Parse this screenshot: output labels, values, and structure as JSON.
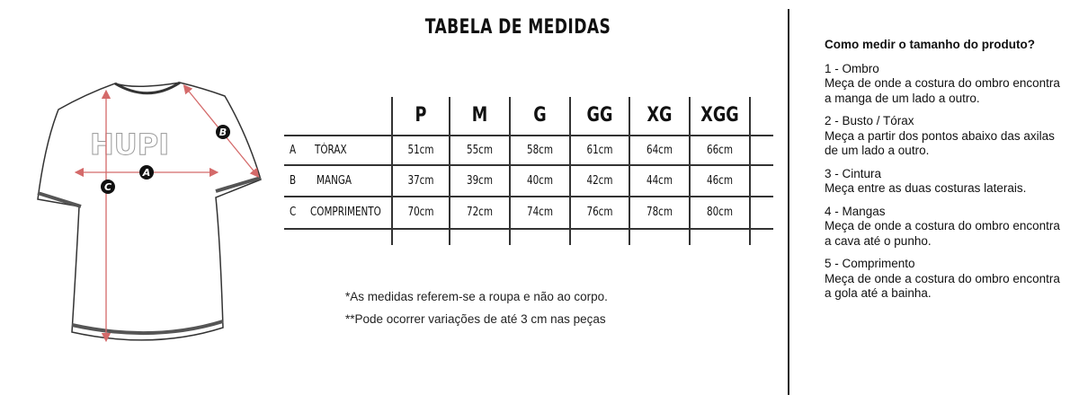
{
  "title": "TABELA DE MEDIDAS",
  "diagram": {
    "logo": "HUPI",
    "markers": [
      "A",
      "B",
      "C"
    ],
    "arrow_color": "#d46a6a"
  },
  "table": {
    "sizes": [
      "P",
      "M",
      "G",
      "GG",
      "XG",
      "XGG"
    ],
    "rows": [
      {
        "code": "A",
        "label": "TÓRAX",
        "values": [
          "51cm",
          "55cm",
          "58cm",
          "61cm",
          "64cm",
          "66cm"
        ]
      },
      {
        "code": "B",
        "label": "MANGA",
        "values": [
          "37cm",
          "39cm",
          "40cm",
          "42cm",
          "44cm",
          "46cm"
        ]
      },
      {
        "code": "C",
        "label": "COMPRIMENTO",
        "values": [
          "70cm",
          "72cm",
          "74cm",
          "76cm",
          "78cm",
          "80cm"
        ]
      }
    ]
  },
  "notes": [
    "*As medidas referem-se a roupa e não ao corpo.",
    "**Pode ocorrer variações de até 3 cm nas peças"
  ],
  "guide": {
    "question": "Como medir o tamanho do produto?",
    "sections": [
      {
        "heading": "1 - Ombro",
        "text": "Meça de onde a costura do ombro encontra a manga de um lado a outro."
      },
      {
        "heading": "2 - Busto / Tórax",
        "text": "Meça a partir dos pontos abaixo das axilas de um lado a outro."
      },
      {
        "heading": "3 - Cintura",
        "text": "Meça entre as duas costuras laterais."
      },
      {
        "heading": "4 - Mangas",
        "text": "Meça de onde a costura do ombro encontra a cava até o punho."
      },
      {
        "heading": "5 - Comprimento",
        "text": "Meça de onde a costura do ombro encontra a gola até a bainha."
      }
    ]
  }
}
